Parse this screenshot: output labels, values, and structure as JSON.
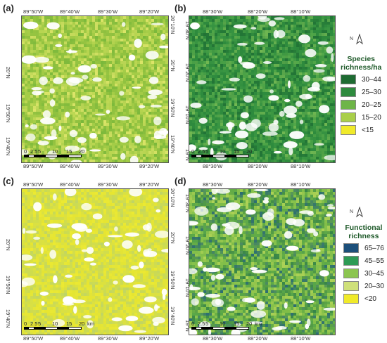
{
  "panels": [
    {
      "label": "(a)",
      "top_ticks": [
        "89°50'W",
        "89°40'W",
        "89°30'W",
        "89°20'W"
      ],
      "bottom_ticks": [
        "89°50'W",
        "89°40'W",
        "89°30'W",
        "89°20'W"
      ],
      "left_ticks": [
        "20°N",
        "19°50'N",
        "19°40'N"
      ],
      "right_ticks": [
        "20°10'N",
        "20°N",
        "19°50'N",
        "19°40'N"
      ],
      "scale": [
        "0",
        "2.5",
        "5",
        "10",
        "15",
        "20"
      ],
      "scale_unit": "",
      "base_color": "#9cc743",
      "palette": [
        "#74b53a",
        "#8cbf3f",
        "#a9cf4a",
        "#c6dc58",
        "#e8ea70"
      ]
    },
    {
      "label": "(b)",
      "top_ticks": [
        "88°30'W",
        "88°20'W",
        "88°10'W"
      ],
      "bottom_ticks": [
        "88°30'W",
        "88°20'W",
        "88°10'W"
      ],
      "left_ticks": [
        "19°30'N",
        "19°20'N",
        "19°10'N",
        "19°N"
      ],
      "right_ticks": [],
      "scale": [
        "0",
        "2.5",
        "5",
        "10",
        "15",
        "20"
      ],
      "scale_unit": "",
      "base_color": "#2f8a3d",
      "palette": [
        "#1f6f34",
        "#2e8b3e",
        "#3d9a45",
        "#5aae4c",
        "#7dbf56"
      ]
    },
    {
      "label": "(c)",
      "top_ticks": [
        "89°50'W",
        "89°40'W",
        "89°30'W",
        "89°20'W"
      ],
      "bottom_ticks": [
        "89°50'W",
        "89°40'W",
        "89°30'W",
        "89°20'W"
      ],
      "left_ticks": [
        "20°N",
        "19°50'N",
        "19°40'N"
      ],
      "right_ticks": [
        "20°10'N",
        "20°N",
        "19°50'N",
        "19°40'N"
      ],
      "scale": [
        "0",
        "2.5",
        "5",
        "10",
        "15",
        "20"
      ],
      "scale_unit": "km",
      "base_color": "#dfe33c",
      "palette": [
        "#e8e62e",
        "#d7df46",
        "#c4d85a",
        "#b9d26c",
        "#eeea30"
      ]
    },
    {
      "label": "(d)",
      "top_ticks": [
        "88°30'W",
        "88°20'W",
        "88°10'W"
      ],
      "bottom_ticks": [
        "88°30'W",
        "88°20'W",
        "88°10'W"
      ],
      "left_ticks": [
        "19°30'N",
        "19°20'N",
        "19°10'N",
        "19°N"
      ],
      "right_ticks": [],
      "scale": [
        "0",
        "2.5",
        "5",
        "10",
        "15",
        "20"
      ],
      "scale_unit": "km",
      "base_color": "#7ab944",
      "palette": [
        "#2b7c49",
        "#4ea04a",
        "#8cc550",
        "#b6d65a",
        "#1e5f7a"
      ]
    }
  ],
  "legends": [
    {
      "title_line1": "Species",
      "title_line2": "richness/ha",
      "north": "N",
      "items": [
        {
          "label": "30–44",
          "color": "#1e6b32"
        },
        {
          "label": "25–30",
          "color": "#2e8b3e"
        },
        {
          "label": "20–25",
          "color": "#6eb548"
        },
        {
          "label": "15–20",
          "color": "#a9cf4a"
        },
        {
          "label": "<15",
          "color": "#f0ea2a"
        }
      ]
    },
    {
      "title_line1": "Functional",
      "title_line2": "richness",
      "north": "N",
      "items": [
        {
          "label": "65–76",
          "color": "#1c4f7a"
        },
        {
          "label": "45–55",
          "color": "#2e9a55"
        },
        {
          "label": "30–45",
          "color": "#8cc550"
        },
        {
          "label": "20–30",
          "color": "#cfe07a"
        },
        {
          "label": "<20",
          "color": "#f0ea2a"
        }
      ]
    }
  ]
}
